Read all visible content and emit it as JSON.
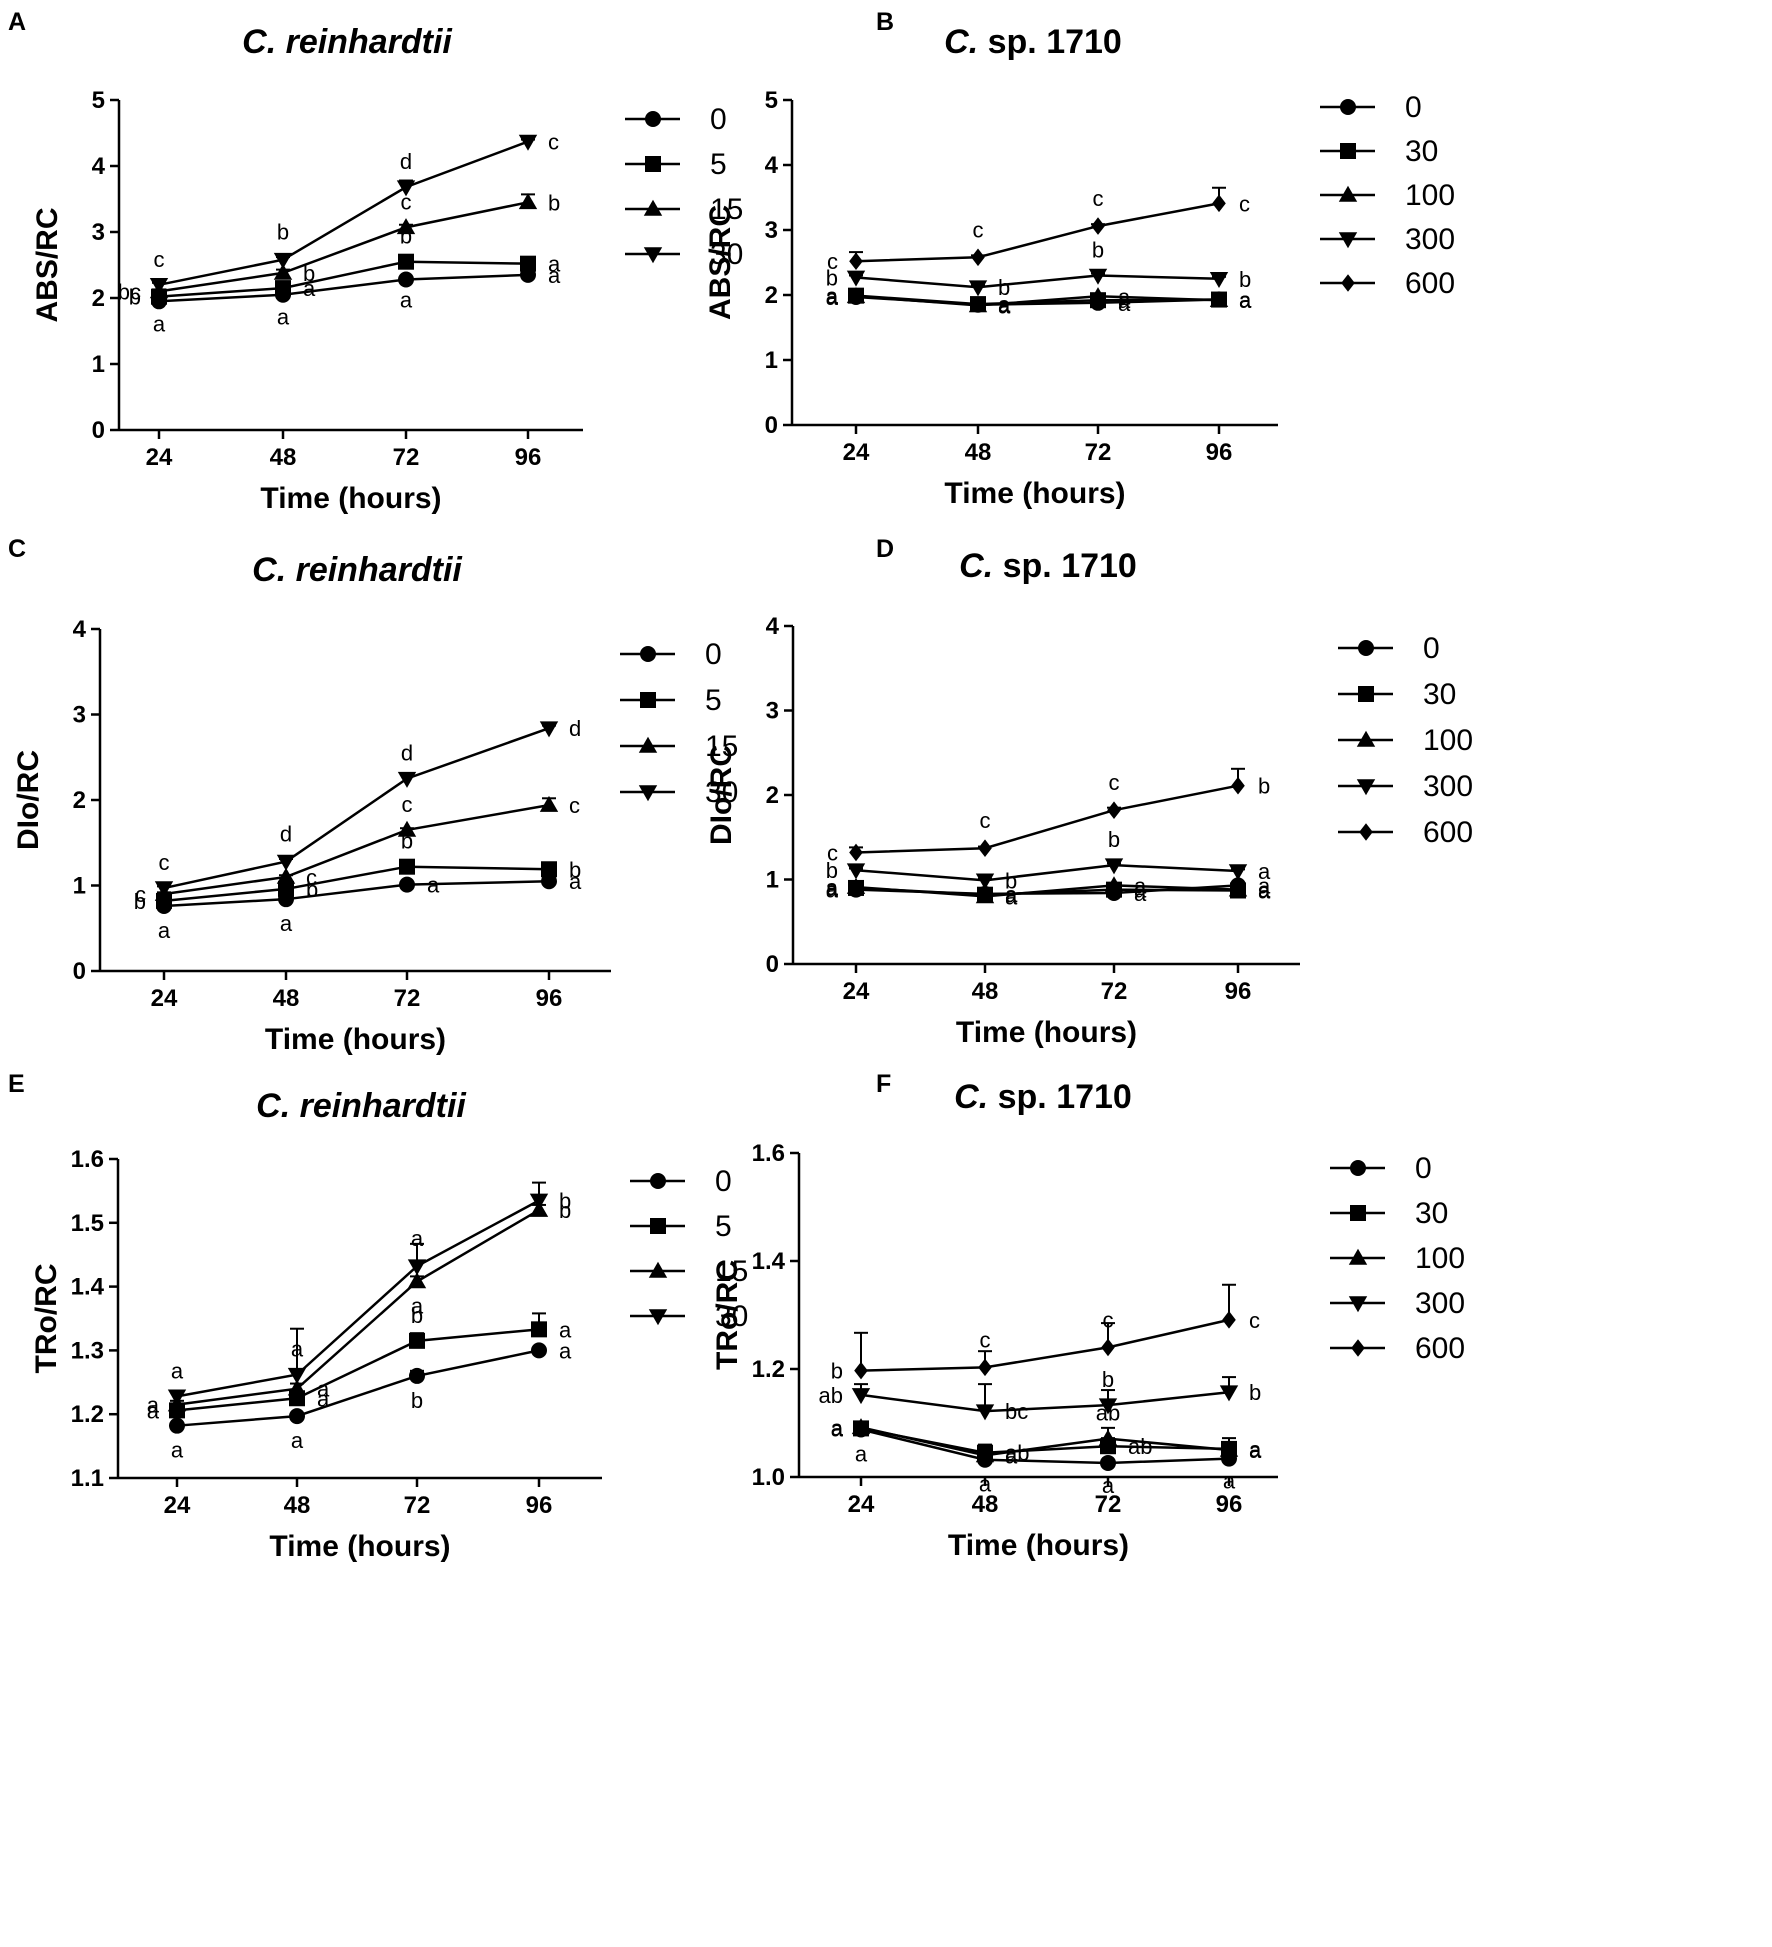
{
  "figure": {
    "description_label": "Six-panel line chart figure"
  },
  "chart_data": [
    {
      "panel": "A",
      "type": "line",
      "title": "C. reinhardtii",
      "title_italic_part": "C. reinhardtii",
      "title_rest": "",
      "xlabel": "Time (hours)",
      "ylabel": "ABS/RC",
      "x": [
        24,
        48,
        72,
        96
      ],
      "ylim": [
        0,
        5
      ],
      "yticks": [
        0,
        1,
        2,
        3,
        4,
        5
      ],
      "ytick_labels": [
        "0",
        "1",
        "2",
        "3",
        "4",
        "5"
      ],
      "series": [
        {
          "name": "0",
          "marker": "circle",
          "values": [
            1.95,
            2.05,
            2.28,
            2.35
          ],
          "errors": [
            0.03,
            0.03,
            0.03,
            0.03
          ],
          "letters": [
            "a",
            "a",
            "a",
            "a"
          ],
          "letter_offsets_dy": [
            12,
            12,
            10,
            0
          ]
        },
        {
          "name": "5",
          "marker": "square",
          "values": [
            2.02,
            2.15,
            2.55,
            2.52
          ],
          "errors": [
            0.03,
            0.03,
            0.04,
            0.03
          ],
          "letters": [
            "b",
            "a",
            "b",
            "a"
          ],
          "letter_offsets_dy": [
            0,
            0,
            -14,
            0
          ]
        },
        {
          "name": "15",
          "marker": "triangle",
          "values": [
            2.1,
            2.38,
            3.07,
            3.45
          ],
          "errors": [
            0.03,
            0.05,
            0.04,
            0.12
          ],
          "letters": [
            "bc",
            "b",
            "c",
            "b"
          ],
          "letter_offsets_dy": [
            0,
            0,
            -14,
            0
          ]
        },
        {
          "name": "30",
          "marker": "tri-down",
          "values": [
            2.2,
            2.58,
            3.68,
            4.37
          ],
          "errors": [
            0.03,
            0.04,
            0.1,
            0.03
          ],
          "letters": [
            "c",
            "b",
            "d",
            "c"
          ],
          "letter_offsets_dy": [
            -14,
            -16,
            -14,
            0
          ]
        }
      ]
    },
    {
      "panel": "B",
      "type": "line",
      "title": "C. sp. 1710",
      "title_italic_part": "C.",
      "title_rest": " sp. 1710",
      "xlabel": "Time (hours)",
      "ylabel": "ABS/RC",
      "x": [
        24,
        48,
        72,
        96
      ],
      "ylim": [
        0,
        5
      ],
      "yticks": [
        0,
        1,
        2,
        3,
        4,
        5
      ],
      "ytick_labels": [
        "0",
        "1",
        "2",
        "3",
        "4",
        "5"
      ],
      "series": [
        {
          "name": "0",
          "marker": "circle",
          "values": [
            1.97,
            1.85,
            1.88,
            1.93
          ],
          "errors": [
            0.03,
            0.03,
            0.03,
            0.03
          ],
          "letters": [
            "a",
            "a",
            "a",
            "a"
          ],
          "letter_offsets_dy": [
            0,
            0,
            0,
            0
          ]
        },
        {
          "name": "30",
          "marker": "square",
          "values": [
            1.99,
            1.86,
            1.92,
            1.93
          ],
          "errors": [
            0.03,
            0.03,
            0.03,
            0.03
          ],
          "letters": [
            "a",
            "a",
            "a",
            "a"
          ],
          "letter_offsets_dy": [
            0,
            0,
            0,
            0
          ]
        },
        {
          "name": "100",
          "marker": "triangle",
          "values": [
            1.98,
            1.84,
            1.98,
            1.92
          ],
          "errors": [
            0.03,
            0.03,
            0.03,
            0.03
          ],
          "letters": [
            "a",
            "a",
            "a",
            "a"
          ],
          "letter_offsets_dy": [
            0,
            0,
            0,
            0
          ]
        },
        {
          "name": "300",
          "marker": "tri-down",
          "values": [
            2.27,
            2.12,
            2.3,
            2.25
          ],
          "errors": [
            0.03,
            0.03,
            0.03,
            0.03
          ],
          "letters": [
            "b",
            "b",
            "b",
            "b"
          ],
          "letter_offsets_dy": [
            0,
            0,
            -14,
            0
          ]
        },
        {
          "name": "600",
          "marker": "diamond",
          "values": [
            2.52,
            2.58,
            3.06,
            3.41
          ],
          "errors": [
            0.14,
            0.03,
            0.03,
            0.24
          ],
          "letters": [
            "c",
            "c",
            "c",
            "c"
          ],
          "letter_offsets_dy": [
            0,
            -16,
            -16,
            0
          ]
        }
      ]
    },
    {
      "panel": "C",
      "type": "line",
      "title": "C. reinhardtii",
      "title_italic_part": "C. reinhardtii",
      "title_rest": "",
      "xlabel": "Time (hours)",
      "ylabel": "DIo/RC",
      "x": [
        24,
        48,
        72,
        96
      ],
      "ylim": [
        0,
        4
      ],
      "yticks": [
        0,
        1,
        2,
        3,
        4
      ],
      "ytick_labels": [
        "0",
        "1",
        "2",
        "3",
        "4"
      ],
      "series": [
        {
          "name": "0",
          "marker": "circle",
          "values": [
            0.76,
            0.84,
            1.01,
            1.05
          ],
          "errors": [
            0.02,
            0.02,
            0.02,
            0.02
          ],
          "letters": [
            "a",
            "a",
            "a",
            "a"
          ],
          "letter_offsets_dy": [
            14,
            14,
            0,
            0
          ]
        },
        {
          "name": "5",
          "marker": "square",
          "values": [
            0.82,
            0.96,
            1.22,
            1.19
          ],
          "errors": [
            0.02,
            0.02,
            0.02,
            0.02
          ],
          "letters": [
            "b",
            "b",
            "b",
            "b"
          ],
          "letter_offsets_dy": [
            0,
            0,
            -14,
            0
          ]
        },
        {
          "name": "15",
          "marker": "triangle",
          "values": [
            0.9,
            1.1,
            1.65,
            1.94
          ],
          "errors": [
            0.02,
            0.02,
            0.02,
            0.08
          ],
          "letters": [
            "c",
            "c",
            "c",
            "c"
          ],
          "letter_offsets_dy": [
            0,
            0,
            -14,
            0
          ]
        },
        {
          "name": "30",
          "marker": "tri-down",
          "values": [
            0.97,
            1.28,
            2.25,
            2.84
          ],
          "errors": [
            0.02,
            0.03,
            0.06,
            0.03
          ],
          "letters": [
            "c",
            "d",
            "d",
            "d"
          ],
          "letter_offsets_dy": [
            -14,
            -16,
            -14,
            0
          ]
        }
      ]
    },
    {
      "panel": "D",
      "type": "line",
      "title": "C. sp. 1710",
      "title_italic_part": "C.",
      "title_rest": " sp. 1710",
      "xlabel": "Time (hours)",
      "ylabel": "DIo/RC",
      "x": [
        24,
        48,
        72,
        96
      ],
      "ylim": [
        0,
        4
      ],
      "yticks": [
        0,
        1,
        2,
        3,
        4
      ],
      "ytick_labels": [
        "0",
        "1",
        "2",
        "3",
        "4"
      ],
      "series": [
        {
          "name": "0",
          "marker": "circle",
          "values": [
            0.88,
            0.83,
            0.84,
            0.93
          ],
          "errors": [
            0.02,
            0.02,
            0.02,
            0.02
          ],
          "letters": [
            "a",
            "a",
            "a",
            "a"
          ],
          "letter_offsets_dy": [
            0,
            0,
            0,
            0
          ]
        },
        {
          "name": "30",
          "marker": "square",
          "values": [
            0.9,
            0.82,
            0.88,
            0.87
          ],
          "errors": [
            0.02,
            0.02,
            0.02,
            0.02
          ],
          "letters": [
            "a",
            "a",
            "a",
            "a"
          ],
          "letter_offsets_dy": [
            0,
            0,
            0,
            0
          ]
        },
        {
          "name": "100",
          "marker": "triangle",
          "values": [
            0.91,
            0.8,
            0.93,
            0.88
          ],
          "errors": [
            0.02,
            0.02,
            0.02,
            0.02
          ],
          "letters": [
            "a",
            "a",
            "a",
            "a"
          ],
          "letter_offsets_dy": [
            0,
            0,
            0,
            0
          ]
        },
        {
          "name": "300",
          "marker": "tri-down",
          "values": [
            1.11,
            0.99,
            1.17,
            1.1
          ],
          "errors": [
            0.02,
            0.02,
            0.02,
            0.02
          ],
          "letters": [
            "b",
            "b",
            "b",
            "a"
          ],
          "letter_offsets_dy": [
            0,
            0,
            -14,
            0
          ]
        },
        {
          "name": "600",
          "marker": "diamond",
          "values": [
            1.32,
            1.37,
            1.82,
            2.11
          ],
          "errors": [
            0.06,
            0.02,
            0.03,
            0.2
          ],
          "letters": [
            "c",
            "c",
            "c",
            "b"
          ],
          "letter_offsets_dy": [
            0,
            -16,
            -16,
            0
          ]
        }
      ]
    },
    {
      "panel": "E",
      "type": "line",
      "title": "C. reinhardtii",
      "title_italic_part": "C. reinhardtii",
      "title_rest": "",
      "xlabel": "Time (hours)",
      "ylabel": "TRo/RC",
      "x": [
        24,
        48,
        72,
        96
      ],
      "ylim": [
        1.1,
        1.6
      ],
      "yticks": [
        1.1,
        1.2,
        1.3,
        1.4,
        1.5,
        1.6
      ],
      "ytick_labels": [
        "1.1",
        "1.2",
        "1.3",
        "1.4",
        "1.5",
        "1.6"
      ],
      "series": [
        {
          "name": "0",
          "marker": "circle",
          "values": [
            1.182,
            1.197,
            1.26,
            1.3
          ],
          "errors": [
            0.004,
            0.004,
            0.008,
            0.004
          ],
          "letters": [
            "a",
            "a",
            "b",
            "a"
          ],
          "letter_offsets_dy": [
            14,
            14,
            14,
            0
          ]
        },
        {
          "name": "5",
          "marker": "square",
          "values": [
            1.206,
            1.225,
            1.315,
            1.333
          ],
          "errors": [
            0.006,
            0.008,
            0.012,
            0.025
          ],
          "letters": [
            "a",
            "a",
            "b",
            "a"
          ],
          "letter_offsets_dy": [
            0,
            0,
            -14,
            0
          ]
        },
        {
          "name": "15",
          "marker": "triangle",
          "values": [
            1.215,
            1.24,
            1.408,
            1.52
          ],
          "errors": [
            0.006,
            0.008,
            0.008,
            0.008
          ],
          "letters": [
            "a",
            "a",
            "a",
            "b"
          ],
          "letter_offsets_dy": [
            0,
            0,
            14,
            0
          ]
        },
        {
          "name": "30",
          "marker": "tri-down",
          "values": [
            1.228,
            1.262,
            1.432,
            1.535
          ],
          "errors": [
            0.006,
            0.072,
            0.035,
            0.028
          ],
          "letters": [
            "a",
            "a",
            "a",
            "b"
          ],
          "letter_offsets_dy": [
            -14,
            -14,
            -16,
            0
          ]
        }
      ]
    },
    {
      "panel": "F",
      "type": "line",
      "title": "C. sp. 1710",
      "title_italic_part": "C.",
      "title_rest": " sp. 1710",
      "xlabel": "Time (hours)",
      "ylabel": "TRo/RC",
      "x": [
        24,
        48,
        72,
        96
      ],
      "ylim": [
        1.0,
        1.6
      ],
      "yticks": [
        1.0,
        1.2,
        1.4,
        1.6
      ],
      "ytick_labels": [
        "1.0",
        "1.2",
        "1.4",
        "1.6"
      ],
      "series": [
        {
          "name": "0",
          "marker": "circle",
          "values": [
            1.088,
            1.032,
            1.026,
            1.034
          ],
          "errors": [
            0.004,
            0.004,
            0.004,
            0.004
          ],
          "letters": [
            "a",
            "a",
            "a",
            "a"
          ],
          "letter_offsets_dy": [
            14,
            14,
            12,
            12
          ]
        },
        {
          "name": "30",
          "marker": "square",
          "values": [
            1.09,
            1.045,
            1.057,
            1.052
          ],
          "errors": [
            0.004,
            0.015,
            0.015,
            0.02
          ],
          "letters": [
            "a",
            "ab",
            "ab",
            "a"
          ],
          "letter_offsets_dy": [
            0,
            0,
            0,
            0
          ]
        },
        {
          "name": "100",
          "marker": "triangle",
          "values": [
            1.092,
            1.04,
            1.071,
            1.05
          ],
          "errors": [
            0.004,
            0.01,
            0.02,
            0.012
          ],
          "letters": [
            "a",
            "a",
            "ab",
            "a"
          ],
          "letter_offsets_dy": [
            0,
            0,
            -14,
            0
          ]
        },
        {
          "name": "300",
          "marker": "tri-down",
          "values": [
            1.152,
            1.122,
            1.133,
            1.157
          ],
          "errors": [
            0.02,
            0.05,
            0.028,
            0.028
          ],
          "letters": [
            "ab",
            "bc",
            "b",
            "b"
          ],
          "letter_offsets_dy": [
            0,
            0,
            -14,
            0
          ]
        },
        {
          "name": "600",
          "marker": "diamond",
          "values": [
            1.197,
            1.203,
            1.24,
            1.291
          ],
          "errors": [
            0.07,
            0.03,
            0.045,
            0.065
          ],
          "letters": [
            "b",
            "c",
            "c",
            "c"
          ],
          "letter_offsets_dy": [
            0,
            -16,
            -16,
            0
          ]
        }
      ]
    }
  ]
}
